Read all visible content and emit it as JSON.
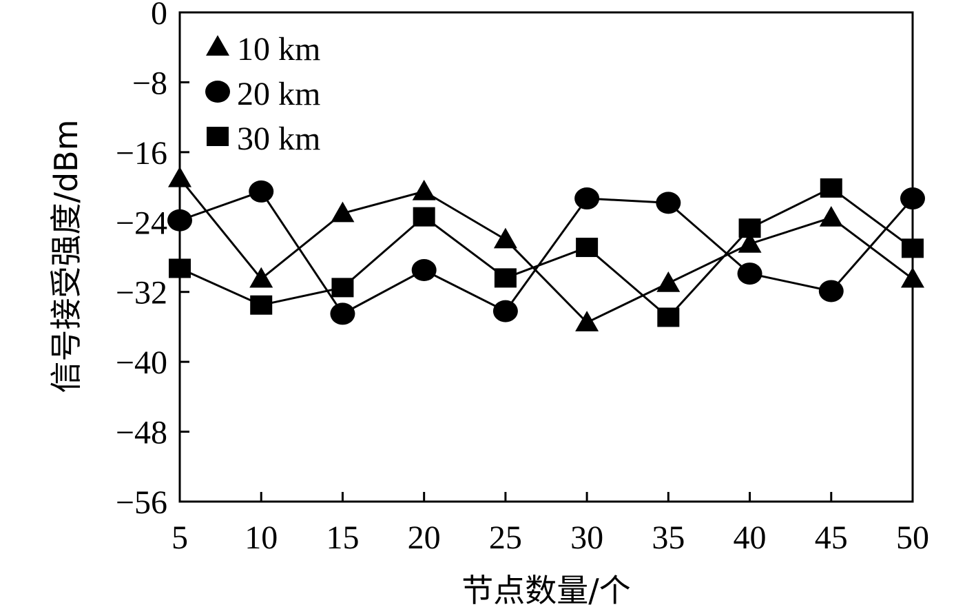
{
  "chart_data": {
    "type": "line",
    "xlabel": "节点数量/个",
    "ylabel": "信号接受强度/dBm",
    "x": [
      5,
      10,
      15,
      20,
      25,
      30,
      35,
      40,
      45,
      50
    ],
    "xlim": [
      5,
      50
    ],
    "ylim": [
      -56,
      0
    ],
    "x_ticks": [
      "5",
      "10",
      "15",
      "20",
      "25",
      "30",
      "35",
      "40",
      "45",
      "50"
    ],
    "y_ticks": [
      0,
      -8,
      -16,
      -24,
      -32,
      -40,
      -48,
      -56
    ],
    "y_tick_labels": [
      "0",
      "−8",
      "−16",
      "−24",
      "−32",
      "−40",
      "−48",
      "−56"
    ],
    "legend_position": "top-left",
    "grid": false,
    "series": [
      {
        "name": "10 km",
        "marker": "triangle",
        "color": "#000000",
        "values": [
          -19,
          -30.5,
          -23,
          -20.5,
          -26,
          -35.5,
          -31,
          -26.5,
          -23.5,
          -30.5
        ]
      },
      {
        "name": "20 km",
        "marker": "circle",
        "color": "#000000",
        "values": [
          -23.8,
          -20.5,
          -34.5,
          -29.5,
          -34.2,
          -21.3,
          -21.8,
          -29.9,
          -31.9,
          -21.3
        ]
      },
      {
        "name": "30 km",
        "marker": "square",
        "color": "#000000",
        "values": [
          -29.3,
          -33.5,
          -31.5,
          -23.4,
          -30.4,
          -26.9,
          -34.9,
          -24.7,
          -20.1,
          -27
        ]
      }
    ]
  }
}
